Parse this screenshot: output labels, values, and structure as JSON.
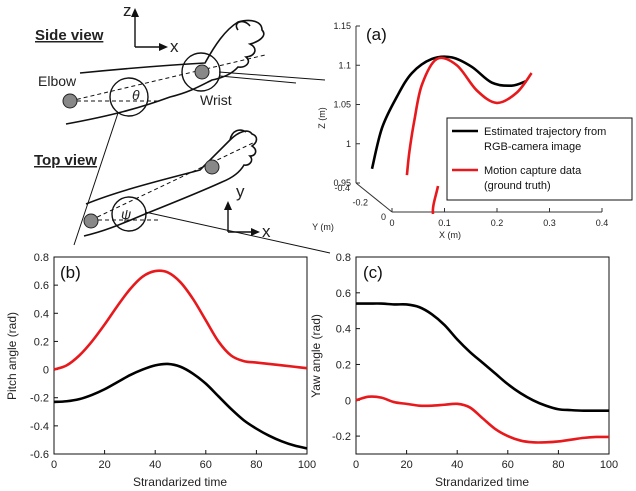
{
  "illustration": {
    "side_view_label": "Side view",
    "top_view_label": "Top view",
    "elbow_label": "Elbow",
    "wrist_label": "Wrist",
    "z_label": "z",
    "x_label_side": "x",
    "y_label": "y",
    "x_label_top": "x",
    "theta": "θ",
    "psi": "ψ"
  },
  "legend": {
    "estimated": "Estimated trajectory from RGB-camera image",
    "estimated_line1": "Estimated trajectory from",
    "estimated_line2": "RGB-camera image",
    "mocap_line1": "Motion capture data",
    "mocap_line2": "(ground truth)",
    "estimated_color": "#000000",
    "mocap_color": "#e8191c"
  },
  "chart_data": [
    {
      "panel": "(a)",
      "type": "line",
      "projection": "3d",
      "xlabel": "X (m)",
      "ylabel": "Y (m)",
      "zlabel": "Z (m)",
      "x_ticks": [
        "0",
        "0.1",
        "0.2",
        "0.3",
        "0.4"
      ],
      "y_ticks": [
        "0",
        "-0.2",
        "-0.4"
      ],
      "z_ticks": [
        "0.95",
        "1",
        "1.05",
        "1.1",
        "1.15"
      ],
      "zlim": [
        0.95,
        1.15
      ],
      "series": [
        {
          "name": "Estimated trajectory from RGB-camera image",
          "color": "#000000",
          "x": [
            0.0,
            0.02,
            0.05,
            0.08,
            0.12,
            0.16,
            0.2,
            0.24,
            0.28,
            0.31
          ],
          "z": [
            0.968,
            1.02,
            1.06,
            1.09,
            1.108,
            1.11,
            1.098,
            1.078,
            1.074,
            1.08
          ]
        },
        {
          "name": "Motion capture data (ground truth)",
          "color": "#e8191c",
          "x": [
            0.07,
            0.075,
            0.085,
            0.1,
            0.13,
            0.17,
            0.21,
            0.25,
            0.29,
            0.32
          ],
          "z": [
            0.96,
            0.99,
            1.03,
            1.075,
            1.108,
            1.1,
            1.068,
            1.052,
            1.065,
            1.09
          ]
        }
      ]
    },
    {
      "panel": "(b)",
      "type": "line",
      "xlabel": "Strandarized time",
      "ylabel": "Pitch angle (rad)",
      "xlim": [
        0,
        100
      ],
      "ylim": [
        -0.6,
        0.8
      ],
      "x_ticks": [
        "0",
        "20",
        "40",
        "60",
        "80",
        "100"
      ],
      "y_ticks": [
        "-0.6",
        "-0.4",
        "-0.2",
        "0",
        "0.2",
        "0.4",
        "0.6",
        "0.8"
      ],
      "x": [
        0,
        5,
        10,
        15,
        20,
        25,
        30,
        35,
        40,
        45,
        50,
        55,
        60,
        65,
        70,
        75,
        80,
        85,
        90,
        95,
        100
      ],
      "series": [
        {
          "name": "Estimated trajectory from RGB-camera image",
          "color": "#000000",
          "values": [
            -0.23,
            -0.225,
            -0.21,
            -0.18,
            -0.14,
            -0.09,
            -0.04,
            0.0,
            0.03,
            0.04,
            0.02,
            -0.03,
            -0.1,
            -0.19,
            -0.28,
            -0.36,
            -0.42,
            -0.47,
            -0.51,
            -0.54,
            -0.56
          ]
        },
        {
          "name": "Motion capture data (ground truth)",
          "color": "#e8191c",
          "values": [
            0.0,
            0.03,
            0.1,
            0.2,
            0.32,
            0.45,
            0.57,
            0.66,
            0.7,
            0.69,
            0.62,
            0.5,
            0.35,
            0.2,
            0.1,
            0.06,
            0.05,
            0.04,
            0.03,
            0.02,
            0.01
          ]
        }
      ]
    },
    {
      "panel": "(c)",
      "type": "line",
      "xlabel": "Strandarized time",
      "ylabel": "Yaw angle (rad)",
      "xlim": [
        0,
        100
      ],
      "ylim": [
        -0.3,
        0.8
      ],
      "x_ticks": [
        "0",
        "20",
        "40",
        "60",
        "80",
        "100"
      ],
      "y_ticks": [
        "-0.2",
        "0",
        "0.2",
        "0.4",
        "0.6",
        "0.8"
      ],
      "x": [
        0,
        5,
        10,
        15,
        20,
        25,
        30,
        35,
        40,
        45,
        50,
        55,
        60,
        65,
        70,
        75,
        80,
        85,
        90,
        95,
        100
      ],
      "series": [
        {
          "name": "Estimated trajectory from RGB-camera image",
          "color": "#000000",
          "values": [
            0.54,
            0.54,
            0.54,
            0.535,
            0.535,
            0.52,
            0.48,
            0.42,
            0.34,
            0.27,
            0.21,
            0.15,
            0.09,
            0.04,
            0.0,
            -0.03,
            -0.05,
            -0.055,
            -0.058,
            -0.058,
            -0.058
          ]
        },
        {
          "name": "Motion capture data (ground truth)",
          "color": "#e8191c",
          "values": [
            0.0,
            0.02,
            0.015,
            -0.01,
            -0.02,
            -0.03,
            -0.03,
            -0.025,
            -0.02,
            -0.04,
            -0.1,
            -0.16,
            -0.2,
            -0.225,
            -0.235,
            -0.235,
            -0.23,
            -0.22,
            -0.21,
            -0.205,
            -0.205
          ]
        }
      ]
    }
  ]
}
